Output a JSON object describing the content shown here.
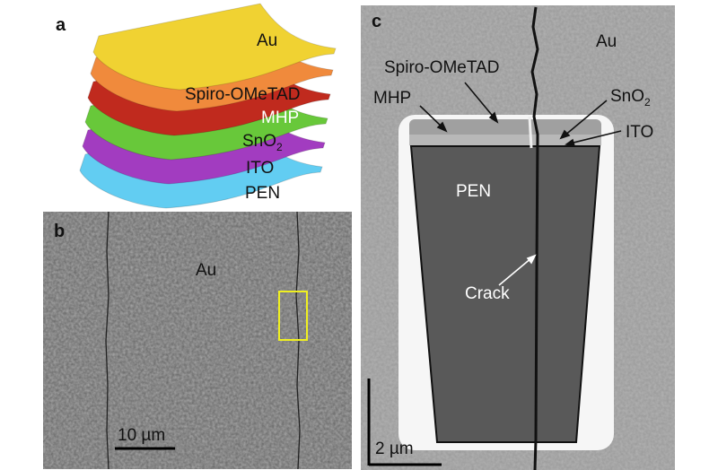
{
  "panels": {
    "a": {
      "letter": "a",
      "layers": [
        {
          "label": "Au",
          "color": "#f0d232"
        },
        {
          "label": "Spiro-OMeTAD",
          "color": "#f08a3c"
        },
        {
          "label": "MHP",
          "color": "#c02a1e"
        },
        {
          "label": "SnO",
          "sub": "2",
          "color": "#68c83a"
        },
        {
          "label": "ITO",
          "color": "#a23cc0"
        },
        {
          "label": "PEN",
          "color": "#62cdf2"
        }
      ]
    },
    "b": {
      "letter": "b",
      "label_au": "Au",
      "scale_bar": "10 µm",
      "highlight_color": "#f0f020"
    },
    "c": {
      "letter": "c",
      "label_au": "Au",
      "label_spiro": "Spiro-OMeTAD",
      "label_mhp": "MHP",
      "label_sno2": "SnO",
      "label_sno2_sub": "2",
      "label_ito": "ITO",
      "label_pen": "PEN",
      "label_crack": "Crack",
      "scale_bar": "2 µm"
    }
  }
}
